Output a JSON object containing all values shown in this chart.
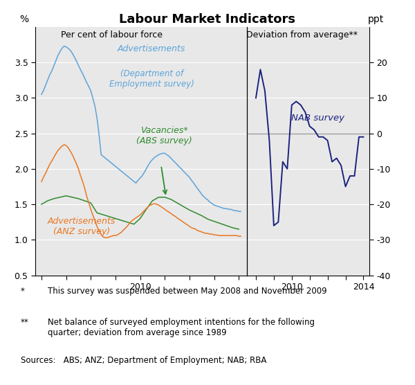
{
  "title": "Labour Market Indicators",
  "left_subtitle": "Per cent of labour force",
  "right_subtitle": "Deviation from average**",
  "left_ylabel": "%",
  "right_ylabel": "ppt",
  "bg_color": "#e8e8e8",
  "adv_dept_color": "#5BA3D9",
  "vacancies_color": "#2E8B2E",
  "adv_anz_color": "#E87722",
  "nab_color": "#1A237E",
  "footnote1_star": "*",
  "footnote1_text": "This survey was suspended between May 2008 and November 2009",
  "footnote2_star": "**",
  "footnote2_text": "Net balance of surveyed employment intentions for the following\nquarter; deviation from average since 1989",
  "sources": "Sources:   ABS; ANZ; Department of Employment; NAB; RBA",
  "left_xlim": [
    2005.75,
    2014.33
  ],
  "left_ylim": [
    0.5,
    4.0
  ],
  "right_xlim": [
    2007.5,
    2014.33
  ],
  "right_ylim": [
    -40,
    30
  ],
  "adv_dept_x": [
    2006.0,
    2006.08,
    2006.17,
    2006.25,
    2006.33,
    2006.42,
    2006.5,
    2006.58,
    2006.67,
    2006.75,
    2006.83,
    2006.92,
    2007.0,
    2007.08,
    2007.17,
    2007.25,
    2007.33,
    2007.42,
    2007.5,
    2007.58,
    2007.67,
    2007.75,
    2007.83,
    2007.92,
    2008.0,
    2008.08,
    2008.17,
    2008.25,
    2008.33,
    2008.42,
    2009.83,
    2009.92,
    2010.0,
    2010.08,
    2010.17,
    2010.25,
    2010.33,
    2010.42,
    2010.5,
    2010.58,
    2010.67,
    2010.75,
    2010.83,
    2010.92,
    2011.0,
    2011.08,
    2011.17,
    2011.25,
    2011.33,
    2011.42,
    2011.5,
    2011.58,
    2011.67,
    2011.75,
    2011.83,
    2011.92,
    2012.0,
    2012.08,
    2012.17,
    2012.25,
    2012.33,
    2012.42,
    2012.5,
    2012.58,
    2012.67,
    2012.75,
    2012.83,
    2012.92,
    2013.0,
    2013.08,
    2013.17,
    2013.25,
    2013.33,
    2013.42,
    2013.5,
    2013.58,
    2013.67,
    2013.75,
    2013.83,
    2013.92,
    2014.0,
    2014.08
  ],
  "adv_dept_y": [
    3.05,
    3.1,
    3.18,
    3.25,
    3.32,
    3.38,
    3.45,
    3.52,
    3.6,
    3.65,
    3.7,
    3.73,
    3.72,
    3.7,
    3.67,
    3.63,
    3.58,
    3.52,
    3.46,
    3.4,
    3.34,
    3.28,
    3.22,
    3.16,
    3.1,
    3.0,
    2.88,
    2.72,
    2.5,
    2.2,
    1.8,
    1.84,
    1.87,
    1.9,
    1.95,
    2.0,
    2.05,
    2.1,
    2.13,
    2.16,
    2.18,
    2.2,
    2.21,
    2.22,
    2.22,
    2.2,
    2.18,
    2.15,
    2.12,
    2.09,
    2.06,
    2.03,
    2.0,
    1.97,
    1.94,
    1.91,
    1.88,
    1.84,
    1.8,
    1.76,
    1.72,
    1.68,
    1.64,
    1.61,
    1.58,
    1.56,
    1.53,
    1.51,
    1.49,
    1.48,
    1.47,
    1.46,
    1.45,
    1.44,
    1.44,
    1.43,
    1.43,
    1.42,
    1.41,
    1.41,
    1.4,
    1.4
  ],
  "vacancies_x": [
    2006.0,
    2006.25,
    2006.5,
    2006.75,
    2007.0,
    2007.25,
    2007.5,
    2007.75,
    2008.0,
    2008.25,
    2009.75,
    2010.0,
    2010.25,
    2010.5,
    2010.75,
    2011.0,
    2011.25,
    2011.5,
    2011.75,
    2012.0,
    2012.25,
    2012.5,
    2012.75,
    2013.0,
    2013.25,
    2013.5,
    2013.75,
    2014.0
  ],
  "vacancies_y": [
    1.5,
    1.55,
    1.58,
    1.6,
    1.62,
    1.6,
    1.58,
    1.55,
    1.52,
    1.38,
    1.22,
    1.3,
    1.43,
    1.55,
    1.6,
    1.6,
    1.57,
    1.52,
    1.47,
    1.42,
    1.38,
    1.34,
    1.29,
    1.26,
    1.23,
    1.2,
    1.17,
    1.15
  ],
  "adv_anz_x": [
    2006.0,
    2006.08,
    2006.17,
    2006.25,
    2006.33,
    2006.42,
    2006.5,
    2006.58,
    2006.67,
    2006.75,
    2006.83,
    2006.92,
    2007.0,
    2007.08,
    2007.17,
    2007.25,
    2007.33,
    2007.42,
    2007.5,
    2007.58,
    2007.67,
    2007.75,
    2007.83,
    2007.92,
    2008.0,
    2008.08,
    2008.17,
    2008.25,
    2008.33,
    2008.42,
    2008.5,
    2008.58,
    2008.67,
    2008.75,
    2008.83,
    2008.92,
    2009.0,
    2009.08,
    2009.17,
    2009.25,
    2009.33,
    2009.42,
    2009.5,
    2009.58,
    2009.67,
    2009.75,
    2009.83,
    2009.92,
    2010.0,
    2010.08,
    2010.17,
    2010.25,
    2010.33,
    2010.42,
    2010.5,
    2010.58,
    2010.67,
    2010.75,
    2010.83,
    2010.92,
    2011.0,
    2011.08,
    2011.17,
    2011.25,
    2011.33,
    2011.42,
    2011.5,
    2011.58,
    2011.67,
    2011.75,
    2011.83,
    2011.92,
    2012.0,
    2012.08,
    2012.17,
    2012.25,
    2012.33,
    2012.42,
    2012.5,
    2012.58,
    2012.67,
    2012.75,
    2012.83,
    2012.92,
    2013.0,
    2013.08,
    2013.17,
    2013.25,
    2013.33,
    2013.42,
    2013.5,
    2013.58,
    2013.67,
    2013.75,
    2013.83,
    2013.92,
    2014.0,
    2014.08
  ],
  "adv_anz_y": [
    1.82,
    1.88,
    1.94,
    2.0,
    2.06,
    2.11,
    2.16,
    2.21,
    2.26,
    2.29,
    2.32,
    2.34,
    2.33,
    2.3,
    2.25,
    2.2,
    2.14,
    2.07,
    2.0,
    1.91,
    1.82,
    1.73,
    1.62,
    1.52,
    1.43,
    1.35,
    1.27,
    1.19,
    1.13,
    1.08,
    1.04,
    1.03,
    1.03,
    1.04,
    1.05,
    1.06,
    1.06,
    1.07,
    1.09,
    1.11,
    1.14,
    1.17,
    1.2,
    1.24,
    1.27,
    1.29,
    1.31,
    1.33,
    1.35,
    1.38,
    1.41,
    1.44,
    1.47,
    1.49,
    1.5,
    1.51,
    1.5,
    1.49,
    1.47,
    1.45,
    1.43,
    1.41,
    1.39,
    1.37,
    1.35,
    1.33,
    1.31,
    1.29,
    1.27,
    1.25,
    1.23,
    1.21,
    1.19,
    1.17,
    1.16,
    1.15,
    1.13,
    1.12,
    1.11,
    1.1,
    1.09,
    1.09,
    1.08,
    1.08,
    1.07,
    1.07,
    1.06,
    1.06,
    1.06,
    1.06,
    1.06,
    1.06,
    1.06,
    1.06,
    1.06,
    1.06,
    1.05,
    1.05
  ],
  "nab_x": [
    2008.0,
    2008.25,
    2008.5,
    2008.75,
    2009.0,
    2009.25,
    2009.5,
    2009.75,
    2010.0,
    2010.25,
    2010.5,
    2010.75,
    2011.0,
    2011.25,
    2011.5,
    2011.75,
    2012.0,
    2012.25,
    2012.5,
    2012.75,
    2013.0,
    2013.25,
    2013.5,
    2013.75,
    2014.0
  ],
  "nab_y": [
    10,
    18,
    12,
    -2,
    -26,
    -25,
    -8,
    -10,
    8,
    9,
    8,
    6,
    2,
    1,
    -1,
    -1,
    -2,
    -8,
    -7,
    -9,
    -15,
    -12,
    -12,
    -1,
    -1
  ]
}
